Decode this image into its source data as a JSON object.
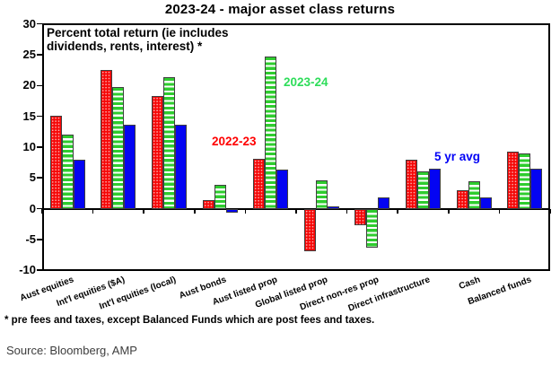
{
  "title": "2023-24 - major asset class returns",
  "annotation": {
    "line1": "Percent total return (ie includes",
    "line2": "dividends, rents, interest) *"
  },
  "footnote": "* pre fees and taxes, except Balanced Funds which are post fees and taxes.",
  "source": "Source: Bloomberg, AMP",
  "chart_data": {
    "type": "bar",
    "title": "2023-24 - major asset class returns",
    "ylabel": "Percent total return (ie includes dividends, rents, interest)",
    "ylim": [
      -10,
      30
    ],
    "ytick_step": 5,
    "yticks": [
      30,
      25,
      20,
      15,
      10,
      5,
      0,
      -5,
      -10
    ],
    "grid": false,
    "legend": "inline colored text labels inside plot",
    "categories": [
      "Aust equities",
      "Int'l equities ($A)",
      "Int'l equities (local)",
      "Aust bonds",
      "Aust listed prop",
      "Global listed prop",
      "Direct non-res prop",
      "Direct infrastructure",
      "Cash",
      "Balanced funds"
    ],
    "series": [
      {
        "name": "2022-23",
        "color": "#ff0000",
        "pattern": "red with white dots",
        "values": [
          15.1,
          22.5,
          18.3,
          1.4,
          8.1,
          -6.8,
          -2.5,
          8.0,
          3.0,
          9.3
        ]
      },
      {
        "name": "2023-24",
        "color": "#2edd5a",
        "pattern": "green horizontal stripes on white",
        "values": [
          12.0,
          19.8,
          21.3,
          3.8,
          24.7,
          4.6,
          -6.2,
          6.0,
          4.4,
          8.9
        ]
      },
      {
        "name": "5 yr avg",
        "color": "#0000f6",
        "pattern": "solid blue",
        "values": [
          7.9,
          13.7,
          13.7,
          -0.5,
          6.4,
          0.3,
          1.8,
          6.5,
          1.8,
          6.5
        ]
      }
    ]
  }
}
